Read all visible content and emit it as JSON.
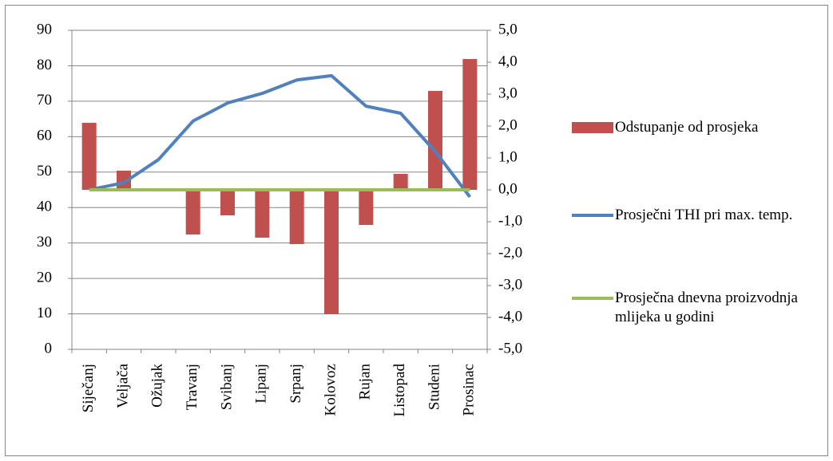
{
  "chart_data": {
    "type": "bar_line",
    "categories": [
      "Siječanj",
      "Veljača",
      "Ožujak",
      "Travanj",
      "Svibanj",
      "Lipanj",
      "Srpanj",
      "Kolovoz",
      "Rujan",
      "Listopad",
      "Studeni",
      "Prosinac"
    ],
    "series": [
      {
        "name": "Odstupanje od prosjeka",
        "type": "bar",
        "axis": "y2",
        "color": "#c0504d",
        "values": [
          2.1,
          0.6,
          0,
          -1.4,
          -0.8,
          -1.5,
          -1.7,
          -3.9,
          -1.1,
          0.5,
          3.1,
          4.1
        ]
      },
      {
        "name": "Prosječni THI pri max. temp.",
        "type": "line",
        "color": "#4f81bd",
        "values": [
          45,
          47,
          53.5,
          64.4,
          69.5,
          72.2,
          76,
          77.2,
          68.6,
          66.6,
          55.8,
          43
        ]
      },
      {
        "name": "Prosječna dnevna proizvodnja mlijeka u godini",
        "type": "line",
        "axis": "y2",
        "color": "#9bbb59",
        "values": [
          0,
          0,
          0,
          0,
          0,
          0,
          0,
          0,
          0,
          0,
          0,
          0
        ]
      }
    ],
    "ylim": [
      0,
      90
    ],
    "yticks": [
      0,
      10,
      20,
      30,
      40,
      50,
      60,
      70,
      80,
      90
    ],
    "y2lim": [
      -5,
      5
    ],
    "y2ticks": [
      {
        "value": -5,
        "label": "-5,0"
      },
      {
        "value": -4,
        "label": "-4,0"
      },
      {
        "value": -3,
        "label": "-3,0"
      },
      {
        "value": -2,
        "label": "-2,0"
      },
      {
        "value": -1,
        "label": "-1,0"
      },
      {
        "value": 0,
        "label": "0,0"
      },
      {
        "value": 1,
        "label": "1,0"
      },
      {
        "value": 2,
        "label": "2,0"
      },
      {
        "value": 3,
        "label": "3,0"
      },
      {
        "value": 4,
        "label": "4,0"
      },
      {
        "value": 5,
        "label": "5,0"
      }
    ],
    "grid": true,
    "legend": "right"
  }
}
